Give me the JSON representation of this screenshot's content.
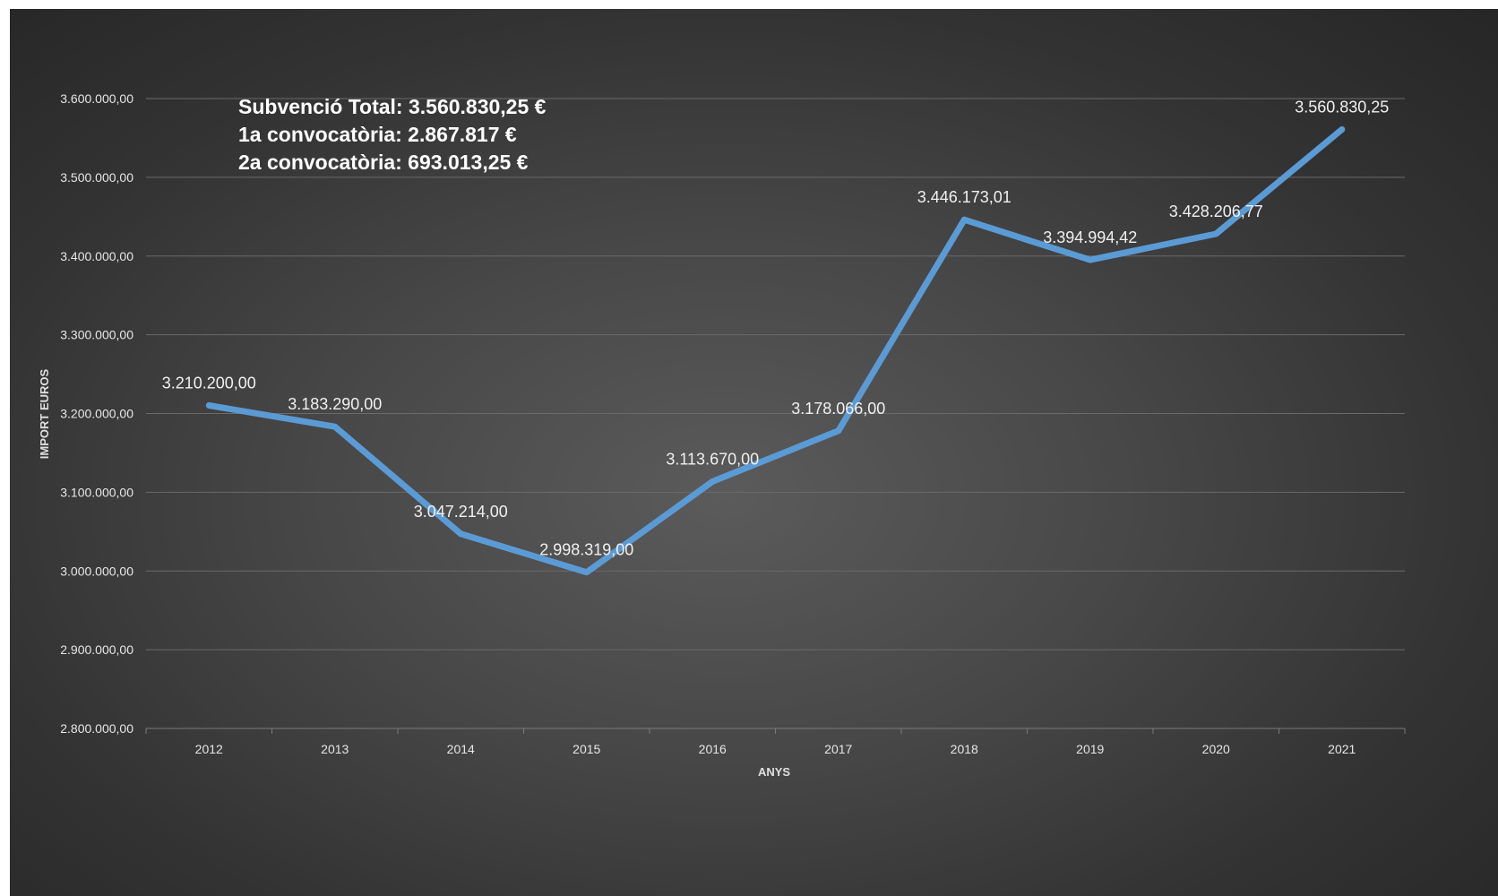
{
  "chart_data": {
    "type": "line",
    "title": "",
    "xlabel": "ANYS",
    "ylabel": "IMPORT EUROS",
    "x": [
      "2012",
      "2013",
      "2014",
      "2015",
      "2016",
      "2017",
      "2018",
      "2019",
      "2020",
      "2021"
    ],
    "series": [
      {
        "values": [
          3210200.0,
          3183290.0,
          3047214.0,
          2998319.0,
          3113670.0,
          3178066.0,
          3446173.01,
          3394994.42,
          3428206.77,
          3560830.25
        ],
        "color": "#5b9bd5"
      }
    ],
    "data_labels": [
      "3.210.200,00",
      "3.183.290,00",
      "3.047.214,00",
      "2.998.319,00",
      "3.113.670,00",
      "3.178.066,00",
      "3.446.173,01",
      "3.394.994,42",
      "3.428.206,77",
      "3.560.830,25"
    ],
    "ylim": [
      2800000,
      3600000
    ],
    "y_ticks": [
      {
        "value": 2800000,
        "label": "2.800.000,00"
      },
      {
        "value": 2900000,
        "label": "2.900.000,00"
      },
      {
        "value": 3000000,
        "label": "3.000.000,00"
      },
      {
        "value": 3100000,
        "label": "3.100.000,00"
      },
      {
        "value": 3200000,
        "label": "3.200.000,00"
      },
      {
        "value": 3300000,
        "label": "3.300.000,00"
      },
      {
        "value": 3400000,
        "label": "3.400.000,00"
      },
      {
        "value": 3500000,
        "label": "3.500.000,00"
      },
      {
        "value": 3600000,
        "label": "3.600.000,00"
      }
    ],
    "grid": true,
    "legend": "none",
    "annotations": [
      "Subvenció Total: 3.560.830,25  €",
      "1a convocatòria: 2.867.817  €",
      "2a convocatòria: 693.013,25  €"
    ]
  }
}
